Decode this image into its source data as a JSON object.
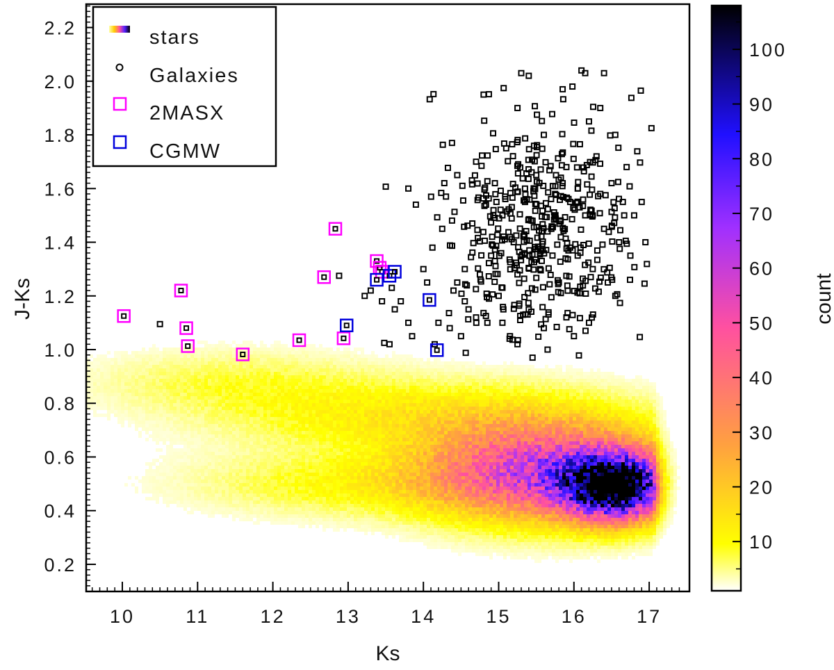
{
  "chart_data": {
    "type": "scatter",
    "title": "",
    "xlabel": "Ks",
    "ylabel": "J-Ks",
    "xlim": [
      9.5,
      17.5
    ],
    "ylim": [
      0.1,
      2.3
    ],
    "x_ticks": [
      "10",
      "11",
      "12",
      "13",
      "14",
      "15",
      "16",
      "17"
    ],
    "y_ticks": [
      "0.2",
      "0.4",
      "0.6",
      "0.8",
      "1.0",
      "1.2",
      "1.4",
      "1.6",
      "1.8",
      "2.0",
      "2.2"
    ],
    "colorbar": {
      "label": "count",
      "range": [
        1,
        108
      ],
      "ticks": [
        "10",
        "20",
        "30",
        "40",
        "50",
        "60",
        "70",
        "80",
        "90",
        "100"
      ],
      "colors": [
        "#ffffff",
        "#ffff00",
        "#ffa040",
        "#ff50a0",
        "#a030ff",
        "#2010ff",
        "#000000"
      ]
    },
    "legend_position": "top-left",
    "legend": [
      {
        "label": "stars",
        "marker": "colorbar-swatch"
      },
      {
        "label": "Galaxies",
        "marker": "small-square",
        "color": "#000000"
      },
      {
        "label": "2MASX",
        "marker": "open-square",
        "color": "#ff00ff"
      },
      {
        "label": "CGMW",
        "marker": "open-square",
        "color": "#0000dd"
      }
    ],
    "series": [
      {
        "name": "2MASX",
        "color": "#ff00ff",
        "points": [
          [
            10.02,
            1.125
          ],
          [
            10.78,
            1.22
          ],
          [
            10.85,
            1.08
          ],
          [
            10.87,
            1.013
          ],
          [
            11.6,
            0.982
          ],
          [
            12.35,
            1.035
          ],
          [
            12.68,
            1.27
          ],
          [
            12.83,
            1.45
          ],
          [
            12.94,
            1.042
          ],
          [
            13.38,
            1.33
          ],
          [
            13.42,
            1.305
          ],
          [
            13.45,
            1.29
          ]
        ]
      },
      {
        "name": "CGMW",
        "color": "#0000dd",
        "points": [
          [
            12.98,
            1.09
          ],
          [
            13.38,
            1.26
          ],
          [
            13.55,
            1.275
          ],
          [
            13.62,
            1.29
          ],
          [
            14.08,
            1.185
          ],
          [
            14.18,
            0.998
          ]
        ]
      },
      {
        "name": "Galaxies",
        "color": "#000000",
        "points": [
          [
            10.5,
            1.095
          ],
          [
            12.88,
            1.275
          ],
          [
            13.22,
            1.2
          ],
          [
            13.3,
            1.22
          ],
          [
            13.45,
            1.18
          ],
          [
            13.48,
            1.025
          ],
          [
            13.55,
            1.02
          ],
          [
            13.58,
            1.23
          ],
          [
            13.62,
            1.15
          ],
          [
            13.7,
            1.18
          ],
          [
            13.8,
            1.1
          ],
          [
            13.85,
            1.05
          ],
          [
            13.5,
            1.607
          ],
          [
            13.8,
            1.6
          ],
          [
            13.9,
            1.54
          ],
          [
            14.0,
            1.3
          ],
          [
            14.05,
            1.25
          ],
          [
            14.12,
            1.38
          ],
          [
            14.2,
            1.1
          ],
          [
            14.25,
            1.45
          ],
          [
            14.3,
            1.57
          ],
          [
            14.38,
            1.77
          ],
          [
            14.4,
            1.22
          ],
          [
            14.45,
            1.65
          ],
          [
            14.5,
            1.05
          ],
          [
            14.55,
            1.3
          ],
          [
            14.6,
            1.15
          ],
          [
            14.65,
            1.47
          ],
          [
            14.7,
            1.7
          ],
          [
            14.75,
            1.28
          ],
          [
            14.8,
            1.95
          ],
          [
            14.85,
            1.1
          ],
          [
            14.9,
            1.35
          ],
          [
            14.95,
            1.62
          ],
          [
            15.0,
            1.2
          ],
          [
            15.05,
            1.5
          ],
          [
            15.1,
            1.75
          ],
          [
            15.15,
            1.05
          ],
          [
            15.2,
            1.4
          ],
          [
            15.25,
            1.9
          ],
          [
            15.3,
            2.03
          ],
          [
            15.35,
            1.55
          ],
          [
            15.4,
            1.15
          ],
          [
            15.45,
            0.97
          ],
          [
            15.5,
            1.65
          ],
          [
            15.55,
            1.3
          ],
          [
            15.6,
            1.8
          ],
          [
            15.65,
            1.0
          ],
          [
            15.7,
            1.45
          ],
          [
            15.75,
            1.58
          ],
          [
            15.8,
            1.25
          ],
          [
            15.85,
            1.97
          ],
          [
            15.9,
            1.68
          ],
          [
            15.95,
            1.38
          ],
          [
            16.0,
            1.05
          ],
          [
            16.05,
            1.6
          ],
          [
            16.1,
            2.04
          ],
          [
            16.15,
            1.5
          ],
          [
            16.2,
            1.85
          ],
          [
            16.25,
            1.3
          ],
          [
            16.3,
            1.72
          ],
          [
            16.35,
            1.9
          ],
          [
            16.4,
            1.45
          ],
          [
            16.45,
            1.25
          ],
          [
            16.5,
            1.62
          ],
          [
            16.55,
            1.8
          ],
          [
            16.6,
            1.4
          ],
          [
            16.65,
            1.55
          ],
          [
            16.7,
            1.68
          ],
          [
            16.75,
            1.35
          ],
          [
            16.8,
            1.5
          ],
          [
            16.9,
            1.55
          ],
          [
            16.95,
            1.4
          ],
          [
            17.03,
            1.825
          ],
          [
            16.15,
            2.03
          ],
          [
            16.4,
            2.03
          ],
          [
            15.4,
            2.02
          ],
          [
            15.98,
            1.98
          ],
          [
            14.45,
            1.25
          ],
          [
            14.55,
            1.18
          ],
          [
            14.7,
            1.12
          ],
          [
            15.05,
            1.1
          ],
          [
            15.25,
            1.02
          ],
          [
            15.6,
            1.08
          ],
          [
            15.9,
            1.12
          ],
          [
            16.2,
            1.1
          ],
          [
            14.15,
            1.02
          ],
          [
            14.35,
            1.08
          ],
          [
            16.55,
            1.2
          ],
          [
            15.35,
            1.6
          ],
          [
            15.15,
            1.42
          ],
          [
            15.55,
            1.36
          ],
          [
            15.75,
            1.5
          ],
          [
            15.95,
            1.55
          ],
          [
            16.05,
            1.35
          ],
          [
            16.25,
            1.5
          ],
          [
            15.45,
            1.48
          ],
          [
            15.65,
            1.44
          ],
          [
            15.85,
            1.62
          ],
          [
            14.95,
            1.33
          ],
          [
            15.25,
            1.28
          ],
          [
            16.35,
            1.58
          ]
        ]
      }
    ],
    "density": {
      "name": "stars",
      "description_components": [
        {
          "x0": 16.55,
          "y0": 0.49,
          "sx": 0.45,
          "sy": 0.08,
          "peak": 108
        },
        {
          "x0": 15.6,
          "y0": 0.55,
          "sx": 1.0,
          "sy": 0.12,
          "peak": 55
        },
        {
          "x0": 14.0,
          "y0": 0.75,
          "sx": 1.7,
          "sy": 0.09,
          "peak": 12
        },
        {
          "x0": 13.5,
          "y0": 0.5,
          "sx": 1.6,
          "sy": 0.08,
          "peak": 10
        },
        {
          "x0": 11.5,
          "y0": 0.88,
          "sx": 1.3,
          "sy": 0.08,
          "peak": 6
        }
      ]
    }
  }
}
